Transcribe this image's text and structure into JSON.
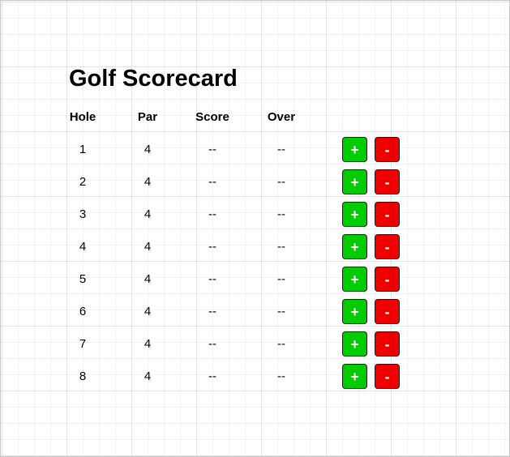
{
  "page": {
    "title": "Golf Scorecard"
  },
  "columns": {
    "hole": "Hole",
    "par": "Par",
    "score": "Score",
    "over": "Over"
  },
  "buttons": {
    "plus_label": "+",
    "minus_label": "-",
    "plus_color": "#00cc00",
    "minus_color": "#ee0000"
  },
  "holes": [
    {
      "hole": "1",
      "par": "4",
      "score": "--",
      "over": "--"
    },
    {
      "hole": "2",
      "par": "4",
      "score": "--",
      "over": "--"
    },
    {
      "hole": "3",
      "par": "4",
      "score": "--",
      "over": "--"
    },
    {
      "hole": "4",
      "par": "4",
      "score": "--",
      "over": "--"
    },
    {
      "hole": "5",
      "par": "4",
      "score": "--",
      "over": "--"
    },
    {
      "hole": "6",
      "par": "4",
      "score": "--",
      "over": "--"
    },
    {
      "hole": "7",
      "par": "4",
      "score": "--",
      "over": "--"
    },
    {
      "hole": "8",
      "par": "4",
      "score": "--",
      "over": "--"
    }
  ]
}
